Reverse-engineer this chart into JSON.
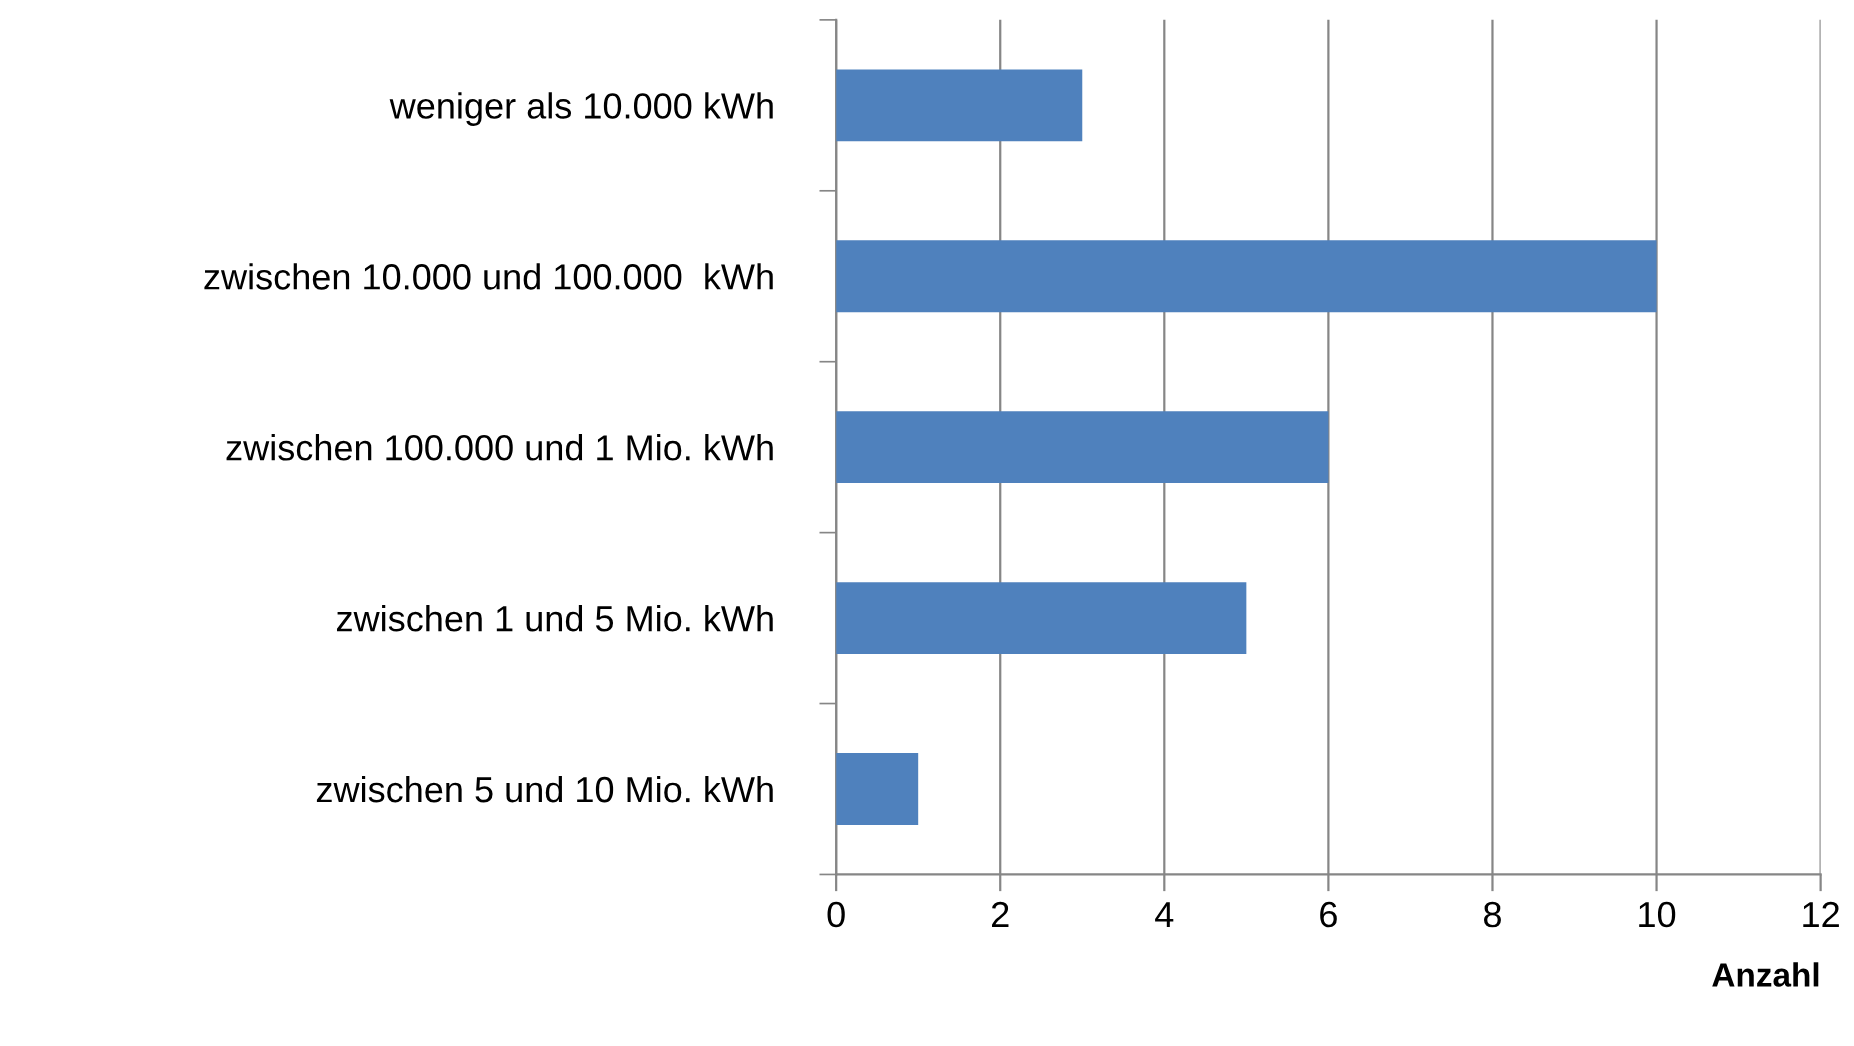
{
  "chart_data": {
    "type": "bar",
    "orientation": "horizontal",
    "xlabel": "Anzahl",
    "categories": [
      "weniger als 10.000 kWh",
      "zwischen 10.000 und 100.000  kWh",
      "zwischen 100.000 und 1 Mio. kWh",
      "zwischen 1 und 5 Mio. kWh",
      "zwischen 5 und 10 Mio. kWh"
    ],
    "values": [
      3,
      10,
      6,
      5,
      1
    ],
    "color": "#4f81bd",
    "xlim": [
      0,
      12
    ],
    "xticks": [
      0,
      2,
      4,
      6,
      8,
      10,
      12
    ],
    "grid": "x"
  }
}
